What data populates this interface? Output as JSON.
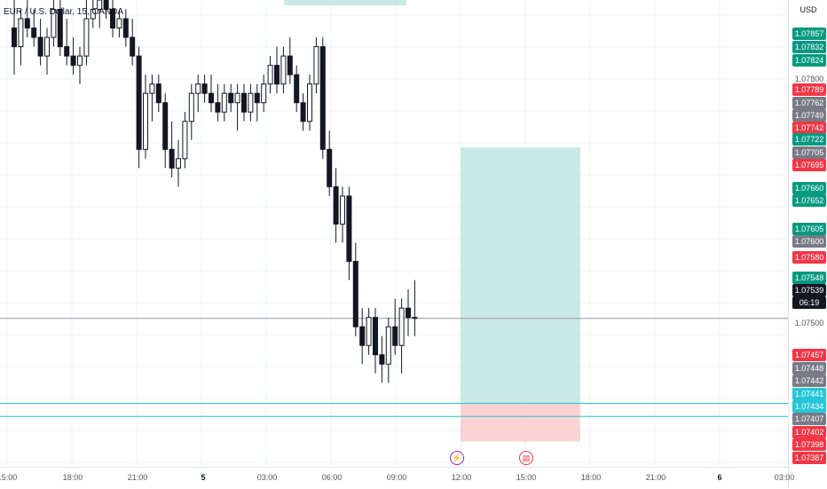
{
  "symbol_title": "EUR / U.S. Dollar, 15, OANDA",
  "currency": "USD",
  "colors": {
    "up": "#131722",
    "down": "#131722",
    "reward": "#b2e0da",
    "risk": "#f7c8c8",
    "green": "#089981",
    "red": "#f23645",
    "gray": "#787b86",
    "teal": "#26c6da",
    "black": "#131722"
  },
  "price_labels": [
    {
      "text": "1.07857",
      "color": "green"
    },
    {
      "text": "1.07832",
      "color": "green"
    },
    {
      "text": "1.07824",
      "color": "green"
    },
    {
      "text": "1.07800",
      "color": "none"
    },
    {
      "text": "1.07789",
      "color": "red"
    },
    {
      "text": "1.07762",
      "color": "gray"
    },
    {
      "text": "1.07749",
      "color": "gray"
    },
    {
      "text": "1.07742",
      "color": "red"
    },
    {
      "text": "1.07722",
      "color": "green"
    },
    {
      "text": "1.07705",
      "color": "gray"
    },
    {
      "text": "1.07695",
      "color": "red"
    },
    {
      "text": "1.07660",
      "color": "green"
    },
    {
      "text": "1.07652",
      "color": "green"
    },
    {
      "text": "1.07605",
      "color": "green"
    },
    {
      "text": "1.07600",
      "color": "gray"
    },
    {
      "text": "1.07580",
      "color": "red"
    },
    {
      "text": "1.07548",
      "color": "green"
    },
    {
      "text": "1.07539",
      "color": "black"
    },
    {
      "text": "06:19",
      "color": "black"
    },
    {
      "text": "1.07500",
      "color": "none"
    },
    {
      "text": "1.07457",
      "color": "red"
    },
    {
      "text": "1.07448",
      "color": "gray"
    },
    {
      "text": "1.07442",
      "color": "gray"
    },
    {
      "text": "1.07441",
      "color": "teal"
    },
    {
      "text": "1.07434",
      "color": "teal"
    },
    {
      "text": "1.07407",
      "color": "gray"
    },
    {
      "text": "1.07402",
      "color": "red"
    },
    {
      "text": "1.07398",
      "color": "red"
    },
    {
      "text": "1.07387",
      "color": "red"
    }
  ],
  "time_labels": [
    "15:00",
    "18:00",
    "21:00",
    "5",
    "03:00",
    "06:00",
    "09:00",
    "12:00",
    "15:00",
    "18:00",
    "21:00",
    "6",
    "03:00"
  ],
  "events": [
    {
      "icon": "lightning-icon",
      "glyph": "⚡"
    },
    {
      "icon": "us-flag-icon",
      "glyph": "▤"
    }
  ],
  "chart_data": {
    "type": "candlestick",
    "price_range": [
      1.0738,
      1.0788
    ],
    "candles": [
      [
        1.0785,
        1.0788,
        1.078,
        1.0783
      ],
      [
        1.0783,
        1.0787,
        1.0781,
        1.0786
      ],
      [
        1.0786,
        1.0788,
        1.0784,
        1.0785
      ],
      [
        1.0785,
        1.0787,
        1.0783,
        1.0784
      ],
      [
        1.0784,
        1.0786,
        1.0781,
        1.0782
      ],
      [
        1.0782,
        1.0785,
        1.078,
        1.0784
      ],
      [
        1.0784,
        1.0788,
        1.0783,
        1.0787
      ],
      [
        1.0787,
        1.0788,
        1.0782,
        1.0783
      ],
      [
        1.0783,
        1.0786,
        1.0781,
        1.0782
      ],
      [
        1.0782,
        1.0784,
        1.078,
        1.0781
      ],
      [
        1.0781,
        1.0783,
        1.0779,
        1.0782
      ],
      [
        1.0782,
        1.0788,
        1.0781,
        1.0786
      ],
      [
        1.0786,
        1.0788,
        1.0785,
        1.0787
      ],
      [
        1.0787,
        1.0788,
        1.0785,
        1.0788
      ],
      [
        1.0788,
        1.0788,
        1.0786,
        1.0787
      ],
      [
        1.0787,
        1.0788,
        1.0784,
        1.0785
      ],
      [
        1.0785,
        1.0787,
        1.0784,
        1.0786
      ],
      [
        1.0786,
        1.0787,
        1.0783,
        1.0784
      ],
      [
        1.0784,
        1.0786,
        1.0781,
        1.0782
      ],
      [
        1.0782,
        1.0783,
        1.077,
        1.0772
      ],
      [
        1.0772,
        1.078,
        1.0771,
        1.0778
      ],
      [
        1.0778,
        1.078,
        1.0775,
        1.0779
      ],
      [
        1.0779,
        1.078,
        1.0776,
        1.0777
      ],
      [
        1.0777,
        1.0778,
        1.077,
        1.0772
      ],
      [
        1.0772,
        1.0775,
        1.0769,
        1.077
      ],
      [
        1.077,
        1.0773,
        1.0768,
        1.0771
      ],
      [
        1.0771,
        1.0776,
        1.077,
        1.0775
      ],
      [
        1.0775,
        1.0779,
        1.0773,
        1.0778
      ],
      [
        1.0778,
        1.078,
        1.0776,
        1.0779
      ],
      [
        1.0779,
        1.078,
        1.0777,
        1.0778
      ],
      [
        1.0778,
        1.078,
        1.0776,
        1.0777
      ],
      [
        1.0777,
        1.0779,
        1.0775,
        1.0776
      ],
      [
        1.0776,
        1.0779,
        1.0775,
        1.0778
      ],
      [
        1.0778,
        1.0779,
        1.0776,
        1.0777
      ],
      [
        1.0777,
        1.0779,
        1.0774,
        1.0778
      ],
      [
        1.0778,
        1.0779,
        1.0775,
        1.0776
      ],
      [
        1.0776,
        1.0779,
        1.0775,
        1.0778
      ],
      [
        1.0778,
        1.0779,
        1.0775,
        1.0777
      ],
      [
        1.0777,
        1.078,
        1.0776,
        1.0779
      ],
      [
        1.0779,
        1.0782,
        1.0778,
        1.0781
      ],
      [
        1.0781,
        1.0783,
        1.0778,
        1.0779
      ],
      [
        1.0779,
        1.0783,
        1.0778,
        1.0782
      ],
      [
        1.0782,
        1.0784,
        1.0779,
        1.078
      ],
      [
        1.078,
        1.0781,
        1.0776,
        1.0777
      ],
      [
        1.0777,
        1.0778,
        1.0774,
        1.0775
      ],
      [
        1.0775,
        1.078,
        1.0774,
        1.0779
      ],
      [
        1.0779,
        1.0784,
        1.0778,
        1.0783
      ],
      [
        1.0783,
        1.0784,
        1.0771,
        1.0772
      ],
      [
        1.0772,
        1.0774,
        1.0767,
        1.0768
      ],
      [
        1.0768,
        1.077,
        1.0762,
        1.0764
      ],
      [
        1.0764,
        1.0768,
        1.0762,
        1.0767
      ],
      [
        1.0767,
        1.0768,
        1.0758,
        1.076
      ],
      [
        1.076,
        1.0762,
        1.0752,
        1.0753
      ],
      [
        1.0753,
        1.0755,
        1.0749,
        1.0751
      ],
      [
        1.0751,
        1.0755,
        1.075,
        1.0754
      ],
      [
        1.0754,
        1.0755,
        1.0748,
        1.075
      ],
      [
        1.075,
        1.0752,
        1.0747,
        1.0749
      ],
      [
        1.0749,
        1.0754,
        1.0747,
        1.0753
      ],
      [
        1.0753,
        1.0756,
        1.075,
        1.0751
      ],
      [
        1.0751,
        1.0756,
        1.0748,
        1.0755
      ],
      [
        1.0755,
        1.0757,
        1.0752,
        1.0754
      ],
      [
        1.0754,
        1.0758,
        1.0752,
        1.0754
      ]
    ],
    "position": {
      "entry": 1.07448,
      "target": 1.07722,
      "stop": 1.07407
    }
  }
}
